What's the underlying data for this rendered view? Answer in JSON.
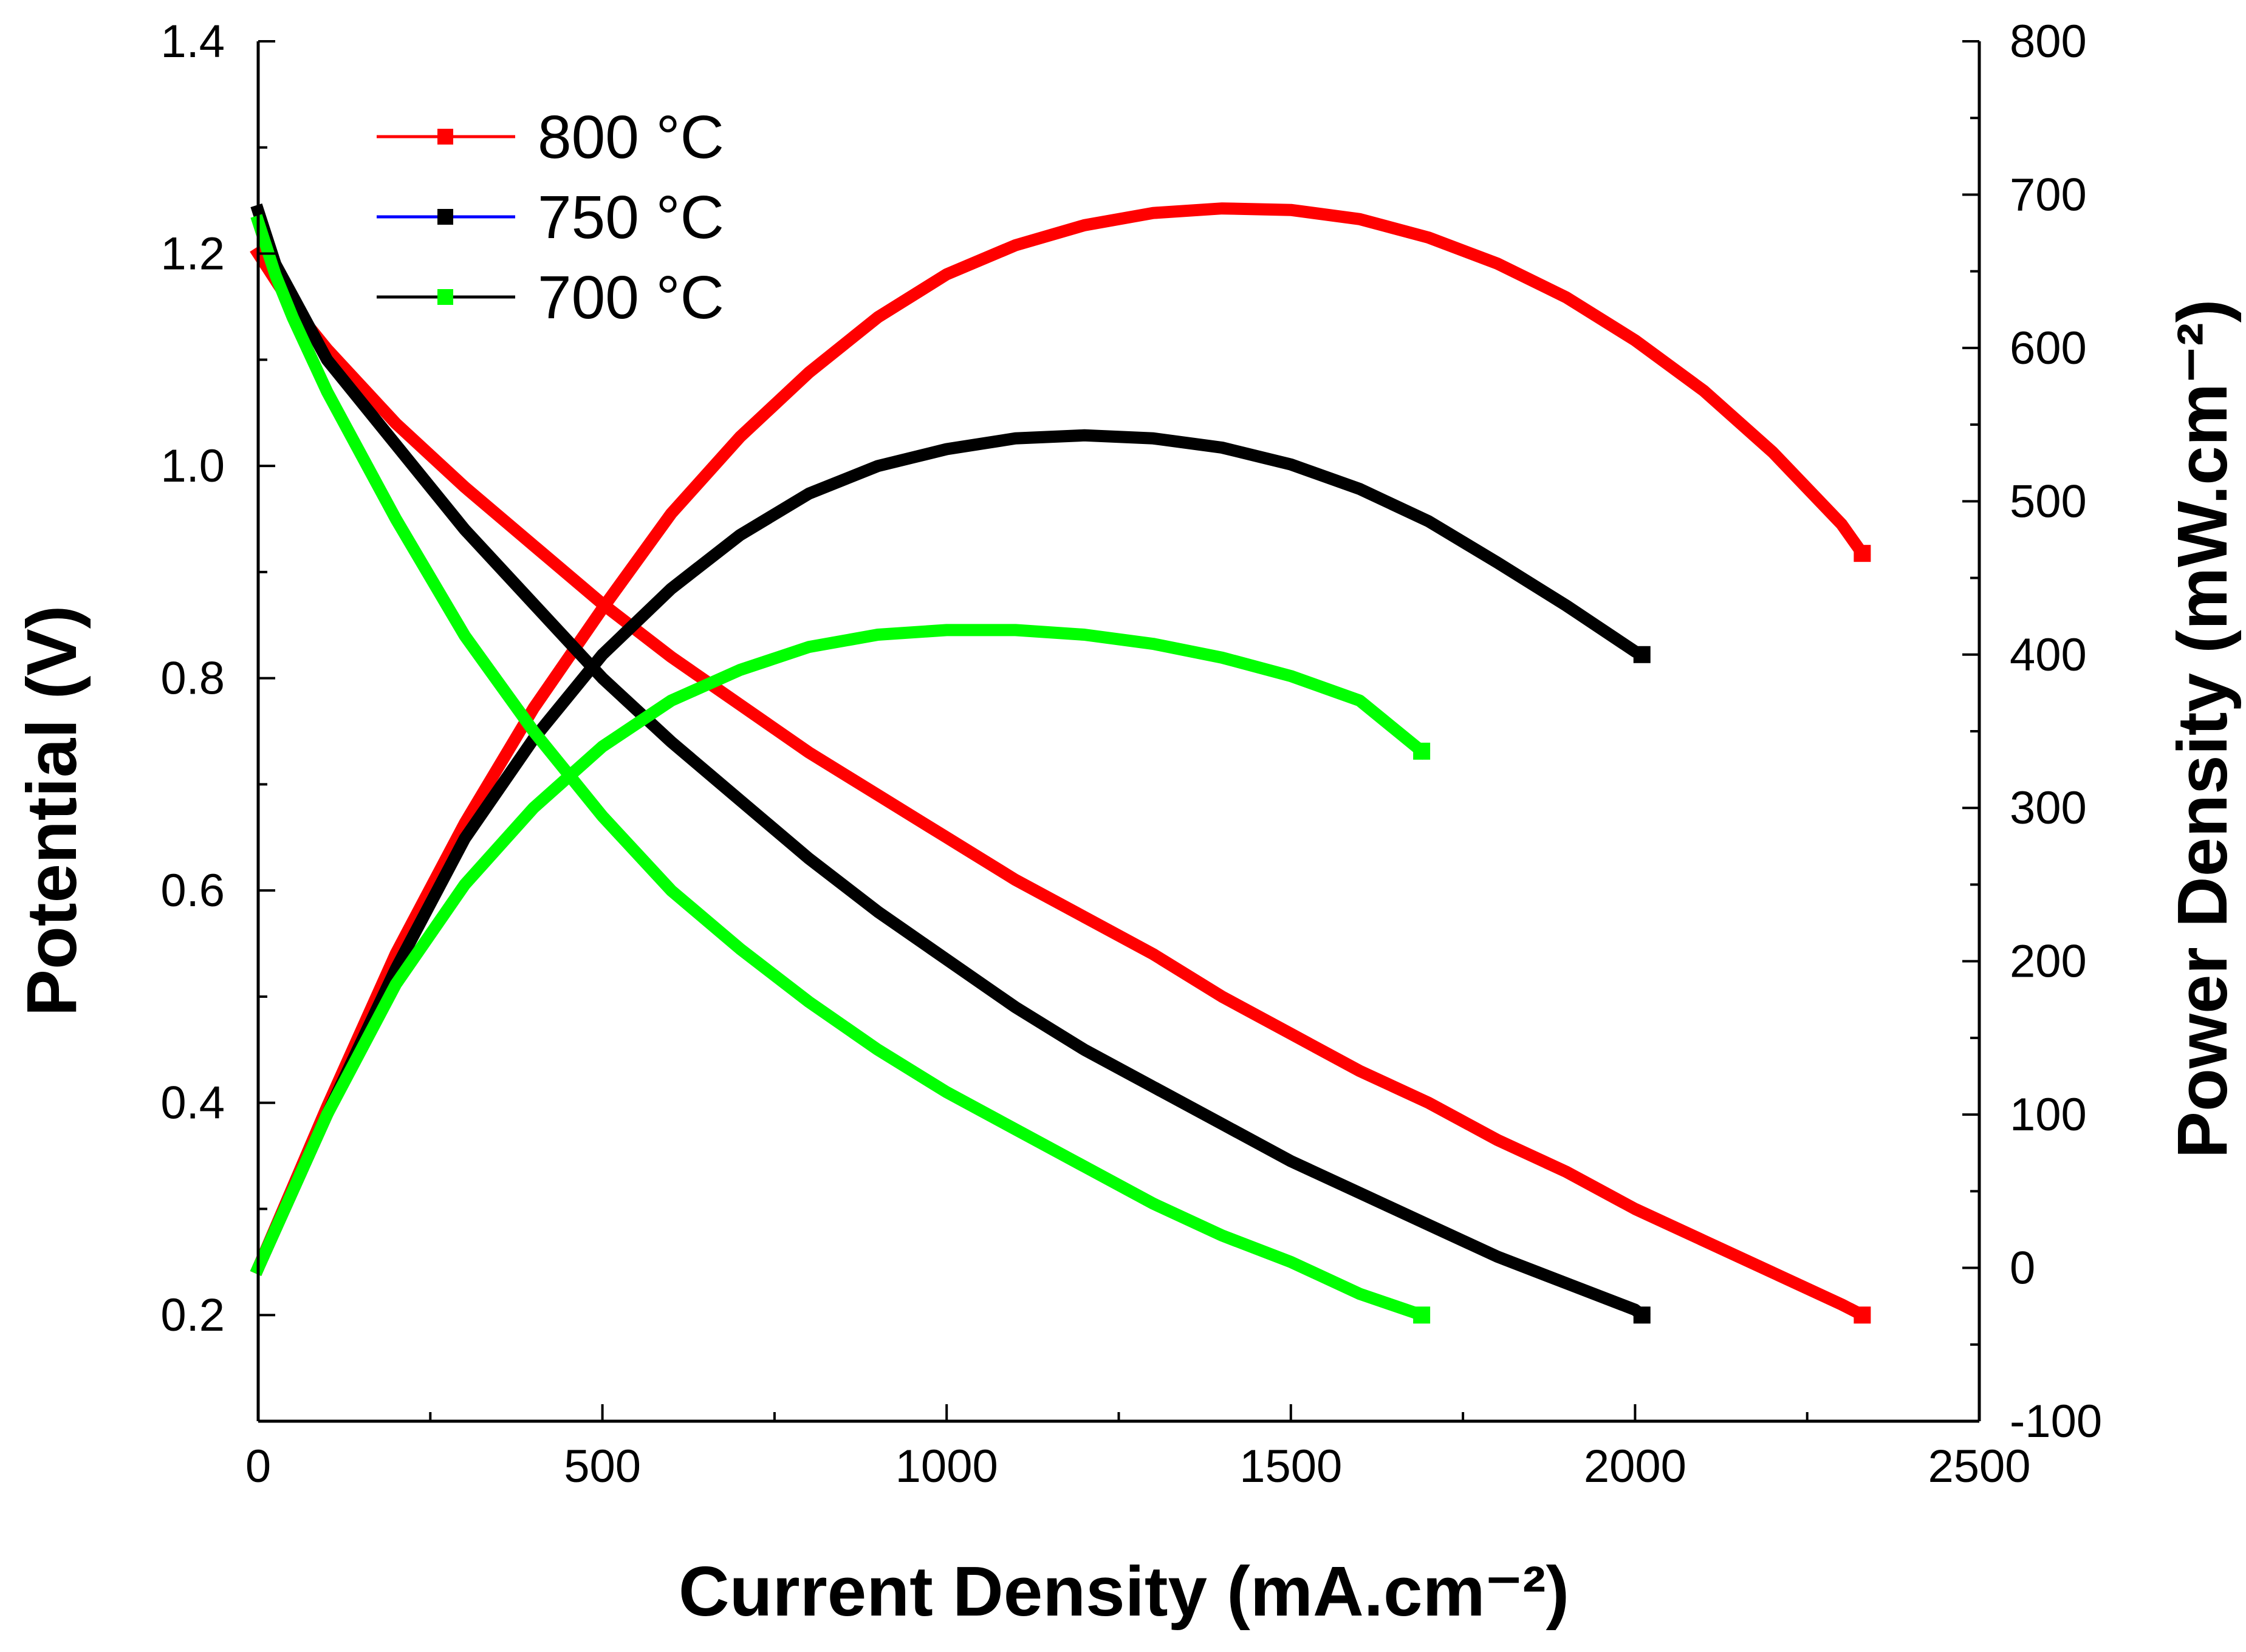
{
  "chart_data": {
    "type": "line",
    "title": "",
    "xlabel": "Current Density (mA.cm⁻²)",
    "ylabel_left": "Potential (V)",
    "ylabel_right": "Power Density (mW.cm⁻²)",
    "xlim": [
      0,
      2500
    ],
    "ylim_left": [
      0.1,
      1.4
    ],
    "ylim_right": [
      -100,
      800
    ],
    "x_ticks": [
      "0",
      "500",
      "1000",
      "1500",
      "2000",
      "2500"
    ],
    "y_left_ticks": [
      "0.2",
      "0.4",
      "0.6",
      "0.8",
      "1.0",
      "1.2",
      "1.4"
    ],
    "y_right_ticks": [
      "-100",
      "0",
      "100",
      "200",
      "300",
      "400",
      "500",
      "600",
      "700",
      "800"
    ],
    "grid": false,
    "legend_position": "top-left",
    "legend": [
      {
        "label": "800 °C",
        "line_color": "#ff0000",
        "marker_color": "#ff0000"
      },
      {
        "label": "750 °C",
        "line_color": "#0000ff",
        "marker_color": "#000000"
      },
      {
        "label": "700 °C",
        "line_color": "#000000",
        "marker_color": "#00ff00"
      }
    ],
    "series": [
      {
        "name": "800 °C potential",
        "axis": "left",
        "color": "#ff0000",
        "x": [
          0,
          50,
          100,
          150,
          200,
          300,
          400,
          500,
          600,
          700,
          800,
          900,
          1000,
          1100,
          1200,
          1300,
          1400,
          1500,
          1600,
          1700,
          1800,
          1900,
          2000,
          2100,
          2200,
          2300,
          2330
        ],
        "y": [
          1.2,
          1.15,
          1.11,
          1.075,
          1.04,
          0.98,
          0.925,
          0.87,
          0.82,
          0.775,
          0.73,
          0.69,
          0.65,
          0.61,
          0.575,
          0.54,
          0.5,
          0.465,
          0.43,
          0.4,
          0.365,
          0.335,
          0.3,
          0.27,
          0.24,
          0.21,
          0.2
        ]
      },
      {
        "name": "800 °C power",
        "axis": "right",
        "color": "#ff0000",
        "x": [
          0,
          100,
          200,
          300,
          400,
          500,
          600,
          700,
          800,
          900,
          1000,
          1100,
          1200,
          1300,
          1400,
          1500,
          1600,
          1700,
          1800,
          1900,
          2000,
          2100,
          2200,
          2300,
          2330
        ],
        "y": [
          0,
          105,
          205,
          290,
          365,
          430,
          492,
          542,
          584,
          620,
          648,
          667,
          680,
          688,
          691,
          690,
          684,
          672,
          655,
          633,
          605,
          572,
          532,
          485,
          466
        ]
      },
      {
        "name": "750 °C potential",
        "axis": "left",
        "color": "#000000",
        "x": [
          0,
          25,
          50,
          100,
          200,
          300,
          400,
          500,
          600,
          700,
          800,
          900,
          1000,
          1100,
          1200,
          1300,
          1400,
          1500,
          1600,
          1700,
          1800,
          1900,
          2000,
          2010
        ],
        "y": [
          1.24,
          1.19,
          1.16,
          1.1,
          1.02,
          0.94,
          0.87,
          0.8,
          0.74,
          0.685,
          0.63,
          0.58,
          0.535,
          0.49,
          0.45,
          0.415,
          0.38,
          0.345,
          0.315,
          0.285,
          0.255,
          0.23,
          0.205,
          0.2
        ]
      },
      {
        "name": "750 °C power",
        "axis": "right",
        "color": "#000000",
        "x": [
          0,
          100,
          200,
          300,
          400,
          500,
          600,
          700,
          800,
          900,
          1000,
          1100,
          1200,
          1300,
          1400,
          1500,
          1600,
          1700,
          1800,
          1900,
          2000,
          2010
        ],
        "y": [
          0,
          100,
          195,
          280,
          345,
          400,
          443,
          478,
          505,
          523,
          534,
          541,
          543,
          541,
          535,
          524,
          508,
          487,
          460,
          432,
          402,
          400
        ]
      },
      {
        "name": "700 °C potential",
        "axis": "left",
        "color": "#00ff00",
        "x": [
          0,
          25,
          50,
          100,
          200,
          300,
          400,
          500,
          600,
          700,
          800,
          900,
          1000,
          1100,
          1200,
          1300,
          1400,
          1500,
          1600,
          1690
        ],
        "y": [
          1.23,
          1.18,
          1.14,
          1.07,
          0.95,
          0.84,
          0.75,
          0.67,
          0.6,
          0.545,
          0.495,
          0.45,
          0.41,
          0.375,
          0.34,
          0.305,
          0.275,
          0.25,
          0.22,
          0.2
        ]
      },
      {
        "name": "700 °C power",
        "axis": "right",
        "color": "#00ff00",
        "x": [
          0,
          100,
          200,
          300,
          400,
          500,
          600,
          700,
          800,
          900,
          1000,
          1100,
          1200,
          1300,
          1400,
          1500,
          1600,
          1690
        ],
        "y": [
          0,
          100,
          185,
          250,
          300,
          340,
          370,
          390,
          405,
          413,
          416,
          416,
          413,
          407,
          398,
          386,
          370,
          337
        ]
      }
    ]
  }
}
